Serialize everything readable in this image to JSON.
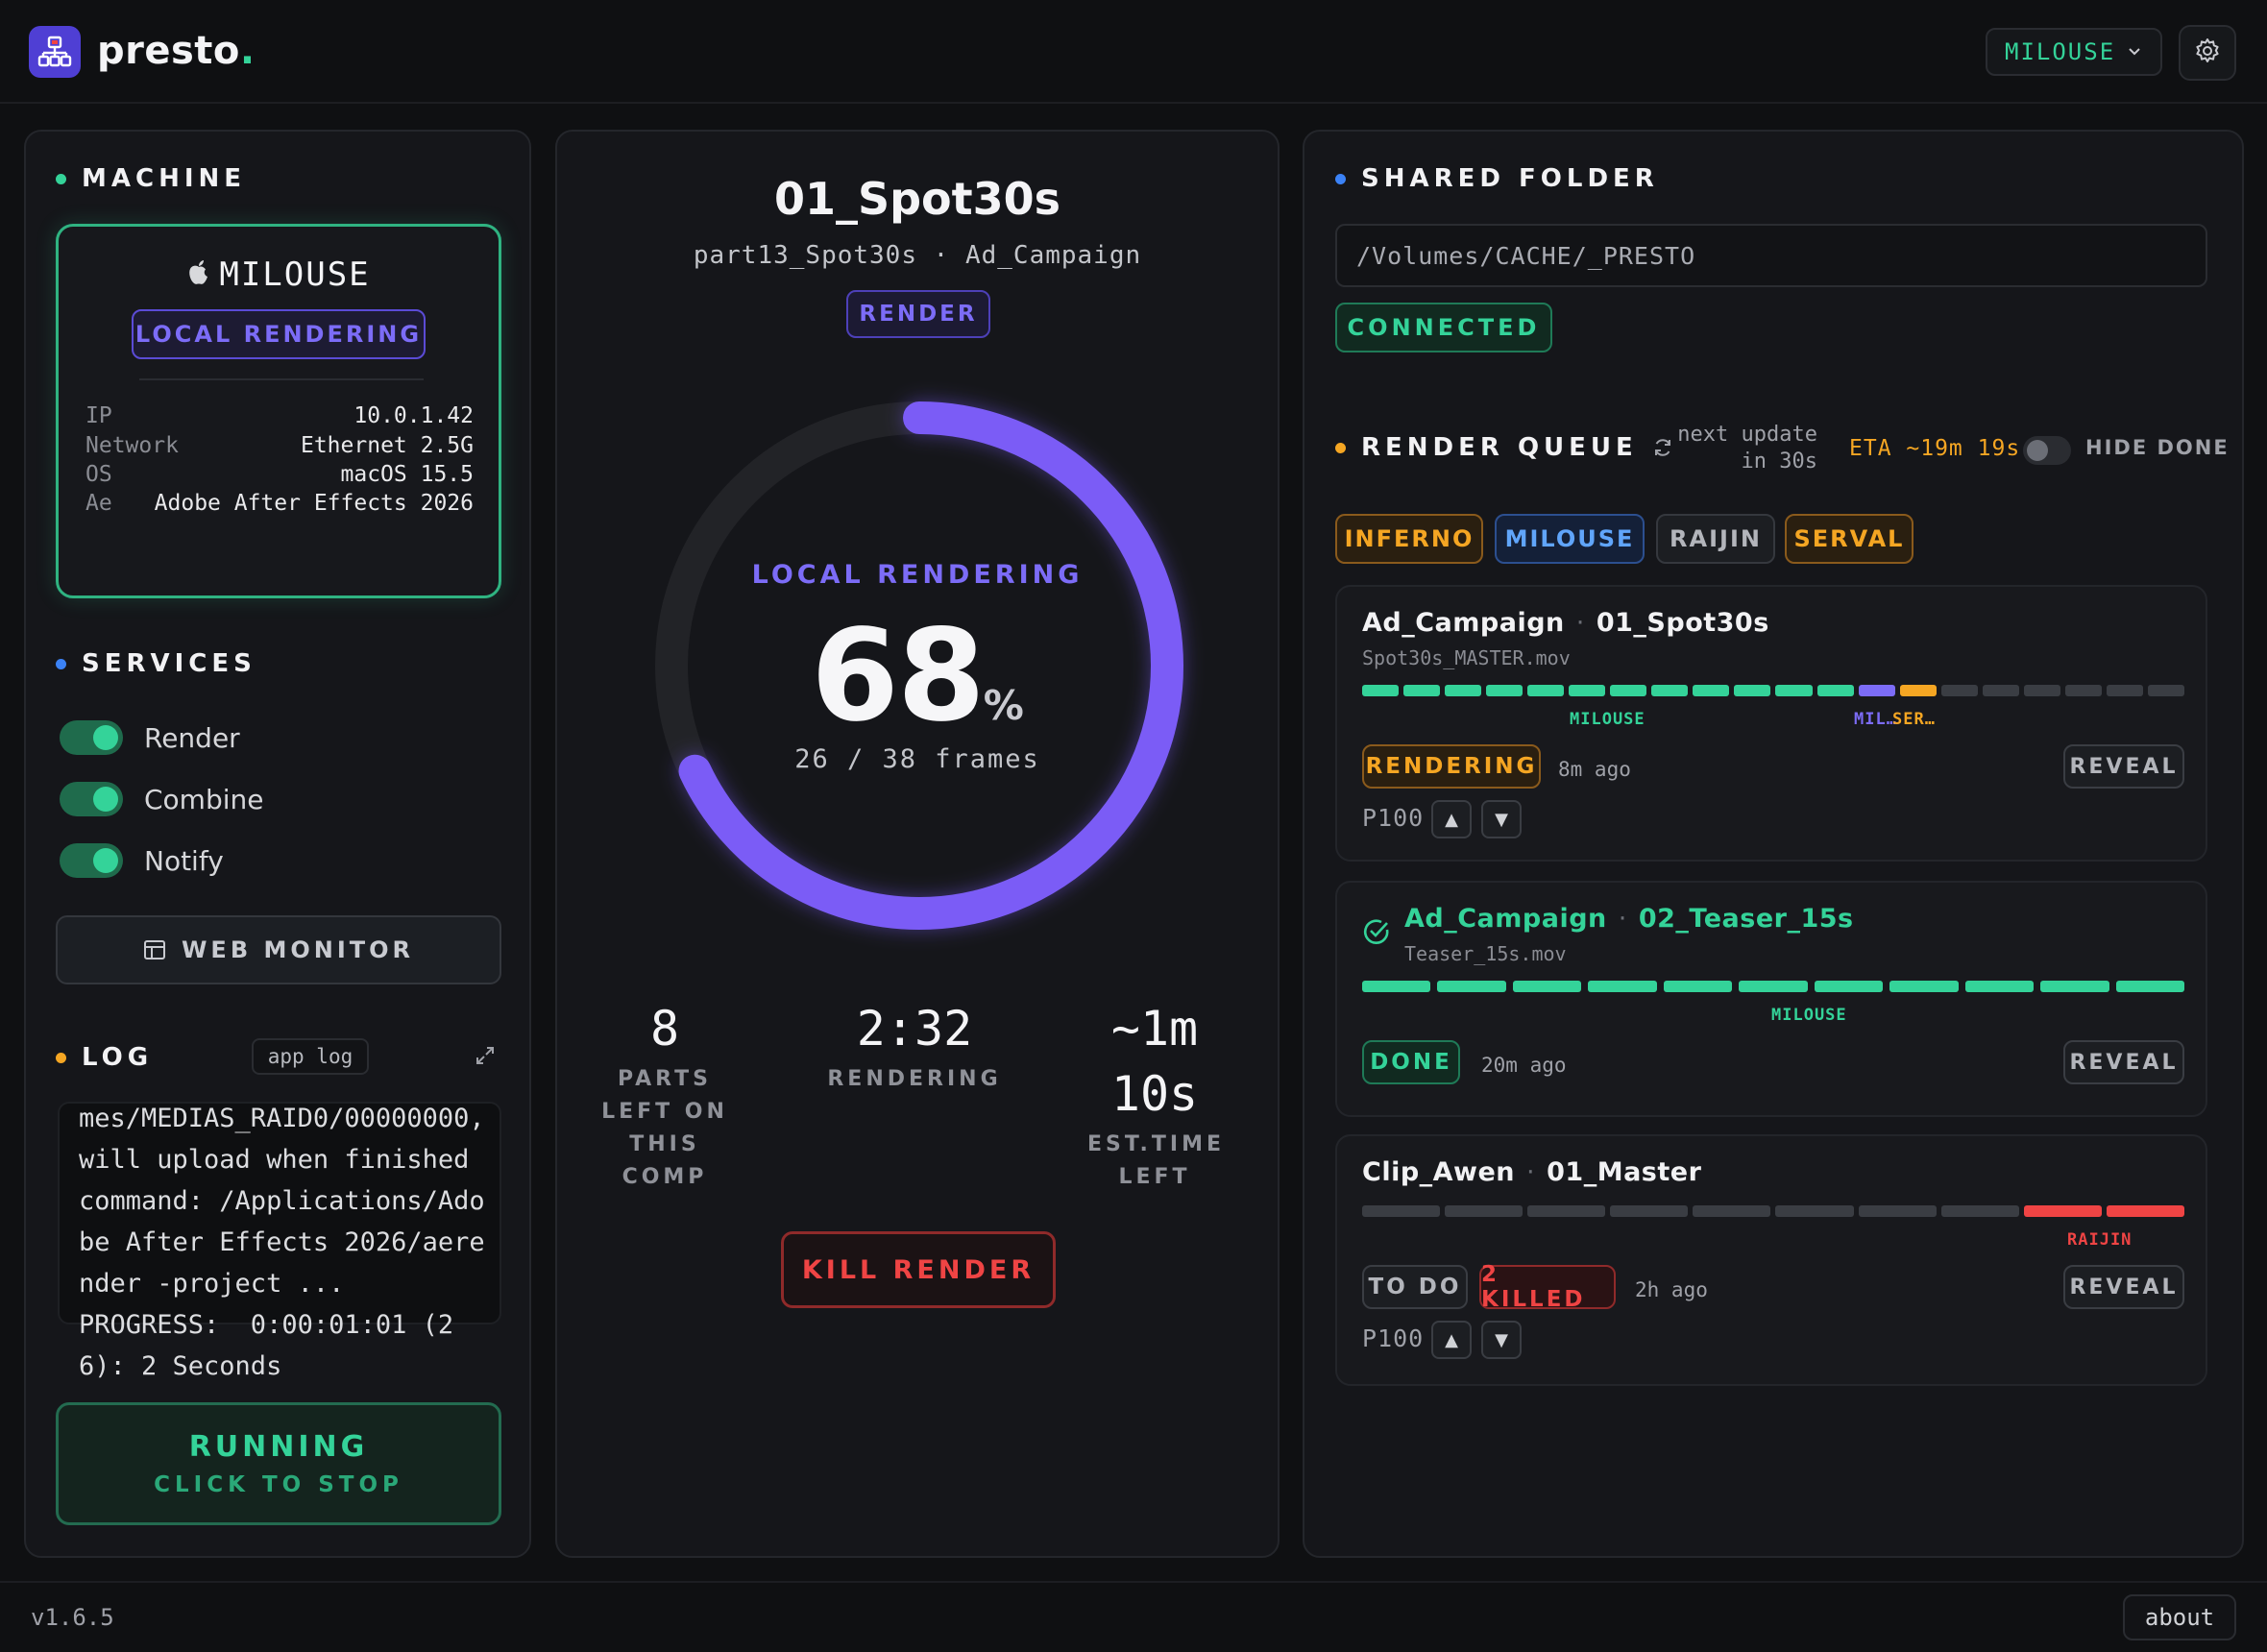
{
  "header": {
    "logo_text": "presto",
    "logo_dot": ".",
    "machine_select": "MILOUSE",
    "logo_icon": "network-icon",
    "settings_icon": "gear-icon"
  },
  "machine": {
    "title": "MACHINE",
    "name": "MILOUSE",
    "os_icon": "apple-icon",
    "mode_badge": "LOCAL RENDERING",
    "specs": [
      {
        "key": "IP",
        "value": "10.0.1.42"
      },
      {
        "key": "Network",
        "value": "Ethernet 2.5G"
      },
      {
        "key": "OS",
        "value": "macOS 15.5"
      },
      {
        "key": "Ae",
        "value": "Adobe After Effects 2026"
      }
    ]
  },
  "services": {
    "title": "SERVICES",
    "items": [
      {
        "label": "Render",
        "on": true
      },
      {
        "label": "Combine",
        "on": true
      },
      {
        "label": "Notify",
        "on": true
      }
    ],
    "web_monitor": "WEB MONITOR"
  },
  "log": {
    "title": "LOG",
    "chip": "app log",
    "text": "mes/MEDIAS_RAID0/00000000,\nwill upload when finished\ncommand: /Applications/Adobe After Effects 2026/aerender -project ...\nPROGRESS:  0:00:01:01 (26): 2 Seconds"
  },
  "running": {
    "label": "RUNNING",
    "sub": "CLICK TO STOP"
  },
  "render": {
    "comp": "01_Spot30s",
    "subtitle": "part13_Spot30s · Ad_Campaign",
    "badge": "RENDER",
    "ring_label": "LOCAL RENDERING",
    "percent": "68",
    "percent_unit": "%",
    "progress_fraction": 0.68,
    "frames": "26 / 38 frames",
    "stats": [
      {
        "value": "8",
        "label": "PARTS LEFT ON THIS COMP"
      },
      {
        "value": "2:32",
        "label": "RENDERING"
      },
      {
        "value": "~1m 10s",
        "label": "EST.TIME LEFT"
      }
    ],
    "kill": "KILL RENDER"
  },
  "shared": {
    "title": "SHARED FOLDER",
    "path": "/Volumes/CACHE/_PRESTO",
    "status": "CONNECTED"
  },
  "queue": {
    "title": "RENDER QUEUE",
    "refresh_icon": "refresh-icon",
    "next_update": "next update in 30s",
    "eta": "ETA ~19m 19s",
    "hide_done": "HIDE DONE",
    "filters": [
      "INFERNO",
      "MILOUSE",
      "RAIJIN",
      "SERVAL"
    ],
    "jobs": [
      {
        "project": "Ad_Campaign",
        "comp": "01_Spot30s",
        "file": "Spot30s_MASTER.mov",
        "segment_labels": [
          "MILOUSE",
          "MIL…",
          "SER…"
        ],
        "status": "RENDERING",
        "ago": "8m ago",
        "reveal": "REVEAL",
        "priority": "P100"
      },
      {
        "project": "Ad_Campaign",
        "comp": "02_Teaser_15s",
        "file": "Teaser_15s.mov",
        "segment_labels": [
          "MILOUSE"
        ],
        "status": "DONE",
        "ago": "20m ago",
        "reveal": "REVEAL",
        "done_icon": "check-circle-icon"
      },
      {
        "project": "Clip_Awen",
        "comp": "01_Master",
        "segment_labels": [
          "RAIJIN"
        ],
        "status": "TO DO",
        "status2": "2 KILLED",
        "ago": "2h ago",
        "reveal": "REVEAL",
        "priority": "P100"
      }
    ]
  },
  "footer": {
    "version": "v1.6.5",
    "about": "about"
  },
  "colors": {
    "accent_green": "#34d399",
    "accent_purple": "#7c6cf7",
    "accent_orange": "#f5a623",
    "accent_red": "#ef4444",
    "accent_blue": "#3b82f6"
  }
}
